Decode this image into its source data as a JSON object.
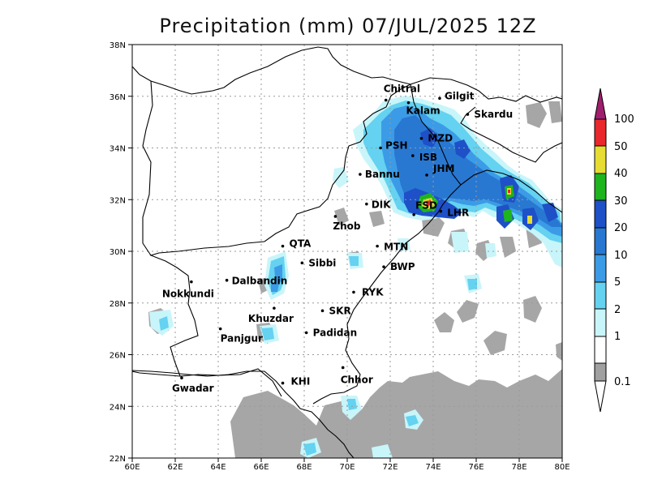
{
  "title": "Precipitation (mm) 07/JUL/2025 12Z",
  "lat_ticks": [
    "38N",
    "36N",
    "34N",
    "32N",
    "30N",
    "28N",
    "26N",
    "24N",
    "22N"
  ],
  "lon_ticks": [
    "60E",
    "62E",
    "64E",
    "66E",
    "68E",
    "70E",
    "72E",
    "74E",
    "76E",
    "78E",
    "80E"
  ],
  "extent": {
    "lon": [
      60,
      80
    ],
    "lat": [
      22,
      38
    ]
  },
  "grid": true,
  "legend": {
    "placement": "right",
    "levels": [
      "100",
      "50",
      "40",
      "30",
      "20",
      "10",
      "5",
      "2",
      "1",
      "0.1"
    ],
    "colors": [
      "#a01e6e",
      "#e8282d",
      "#e6dc32",
      "#1eb41e",
      "#1e50c8",
      "#2878d2",
      "#3c9be6",
      "#64d2f0",
      "#c8f5fa",
      "#a0a0a0"
    ]
  },
  "cities": [
    {
      "name": "Chitral",
      "lon": 71.8,
      "lat": 35.85
    },
    {
      "name": "Gilgit",
      "lon": 74.3,
      "lat": 35.92
    },
    {
      "name": "Kalam",
      "lon": 72.85,
      "lat": 35.75
    },
    {
      "name": "Skardu",
      "lon": 75.6,
      "lat": 35.3
    },
    {
      "name": "MZD",
      "lon": 73.45,
      "lat": 34.37
    },
    {
      "name": "PSH",
      "lon": 71.55,
      "lat": 34.0
    },
    {
      "name": "ISB",
      "lon": 73.05,
      "lat": 33.7
    },
    {
      "name": "JHM",
      "lon": 73.7,
      "lat": 32.95
    },
    {
      "name": "Bannu",
      "lon": 70.6,
      "lat": 32.98
    },
    {
      "name": "DIK",
      "lon": 70.9,
      "lat": 31.83
    },
    {
      "name": "FSD",
      "lon": 73.1,
      "lat": 31.42
    },
    {
      "name": "LHR",
      "lon": 74.35,
      "lat": 31.55
    },
    {
      "name": "Zhob",
      "lon": 69.45,
      "lat": 31.35
    },
    {
      "name": "QTA",
      "lon": 67.0,
      "lat": 30.2
    },
    {
      "name": "MTN",
      "lon": 71.4,
      "lat": 30.2
    },
    {
      "name": "Sibbi",
      "lon": 67.9,
      "lat": 29.55
    },
    {
      "name": "BWP",
      "lon": 71.7,
      "lat": 29.4
    },
    {
      "name": "Nokkundi",
      "lon": 62.75,
      "lat": 28.82
    },
    {
      "name": "Dalbandin",
      "lon": 64.4,
      "lat": 28.88
    },
    {
      "name": "RYK",
      "lon": 70.3,
      "lat": 28.42
    },
    {
      "name": "Khuzdar",
      "lon": 66.6,
      "lat": 27.8
    },
    {
      "name": "SKR",
      "lon": 68.85,
      "lat": 27.7
    },
    {
      "name": "Panjgur",
      "lon": 64.1,
      "lat": 27.0
    },
    {
      "name": "Padidan",
      "lon": 68.1,
      "lat": 26.85
    },
    {
      "name": "Chhor",
      "lon": 69.8,
      "lat": 25.5
    },
    {
      "name": "KHI",
      "lon": 67.0,
      "lat": 24.9
    },
    {
      "name": "Gwadar",
      "lon": 62.3,
      "lat": 25.1
    }
  ]
}
